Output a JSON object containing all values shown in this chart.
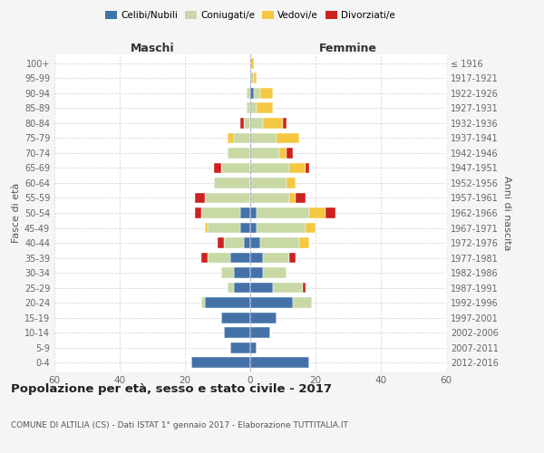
{
  "age_groups": [
    "100+",
    "95-99",
    "90-94",
    "85-89",
    "80-84",
    "75-79",
    "70-74",
    "65-69",
    "60-64",
    "55-59",
    "50-54",
    "45-49",
    "40-44",
    "35-39",
    "30-34",
    "25-29",
    "20-24",
    "15-19",
    "10-14",
    "5-9",
    "0-4"
  ],
  "birth_years": [
    "≤ 1916",
    "1917-1921",
    "1922-1926",
    "1927-1931",
    "1932-1936",
    "1937-1941",
    "1942-1946",
    "1947-1951",
    "1952-1956",
    "1957-1961",
    "1962-1966",
    "1967-1971",
    "1972-1976",
    "1977-1981",
    "1982-1986",
    "1987-1991",
    "1992-1996",
    "1997-2001",
    "2002-2006",
    "2007-2011",
    "2012-2016"
  ],
  "colors": {
    "celibi": "#4472a8",
    "coniugati": "#c8d9a5",
    "vedovi": "#f5c842",
    "divorziati": "#cc2222"
  },
  "maschi": {
    "celibi": [
      0,
      0,
      0,
      0,
      0,
      0,
      0,
      0,
      0,
      0,
      3,
      3,
      2,
      6,
      5,
      5,
      14,
      9,
      8,
      6,
      18
    ],
    "coniugati": [
      0,
      0,
      1,
      1,
      2,
      5,
      7,
      9,
      11,
      14,
      12,
      10,
      6,
      7,
      4,
      2,
      1,
      0,
      0,
      0,
      0
    ],
    "vedovi": [
      0,
      0,
      0,
      0,
      0,
      2,
      0,
      0,
      0,
      0,
      0,
      1,
      0,
      0,
      0,
      0,
      0,
      0,
      0,
      0,
      0
    ],
    "divorziati": [
      0,
      0,
      0,
      0,
      1,
      0,
      0,
      2,
      0,
      3,
      2,
      0,
      2,
      2,
      0,
      0,
      0,
      0,
      0,
      0,
      0
    ]
  },
  "femmine": {
    "celibi": [
      0,
      0,
      1,
      0,
      0,
      0,
      0,
      0,
      0,
      0,
      2,
      2,
      3,
      4,
      4,
      7,
      13,
      8,
      6,
      2,
      18
    ],
    "coniugati": [
      0,
      1,
      2,
      2,
      4,
      8,
      9,
      12,
      11,
      12,
      16,
      15,
      12,
      8,
      7,
      9,
      6,
      0,
      0,
      0,
      0
    ],
    "vedovi": [
      1,
      1,
      4,
      5,
      6,
      7,
      2,
      5,
      3,
      2,
      5,
      3,
      3,
      0,
      0,
      0,
      0,
      0,
      0,
      0,
      0
    ],
    "divorziati": [
      0,
      0,
      0,
      0,
      1,
      0,
      2,
      1,
      0,
      3,
      3,
      0,
      0,
      2,
      0,
      1,
      0,
      0,
      0,
      0,
      0
    ]
  },
  "xlim": 60,
  "title": "Popolazione per età, sesso e stato civile - 2017",
  "subtitle": "COMUNE DI ALTILIA (CS) - Dati ISTAT 1° gennaio 2017 - Elaborazione TUTTITALIA.IT",
  "ylabel_left": "Fasce di età",
  "ylabel_right": "Anni di nascita",
  "xlabel_left": "Maschi",
  "xlabel_right": "Femmine",
  "legend_labels": [
    "Celibi/Nubili",
    "Coniugati/e",
    "Vedovi/e",
    "Divorziati/e"
  ],
  "bg_color": "#f5f5f5",
  "plot_bg": "#ffffff"
}
